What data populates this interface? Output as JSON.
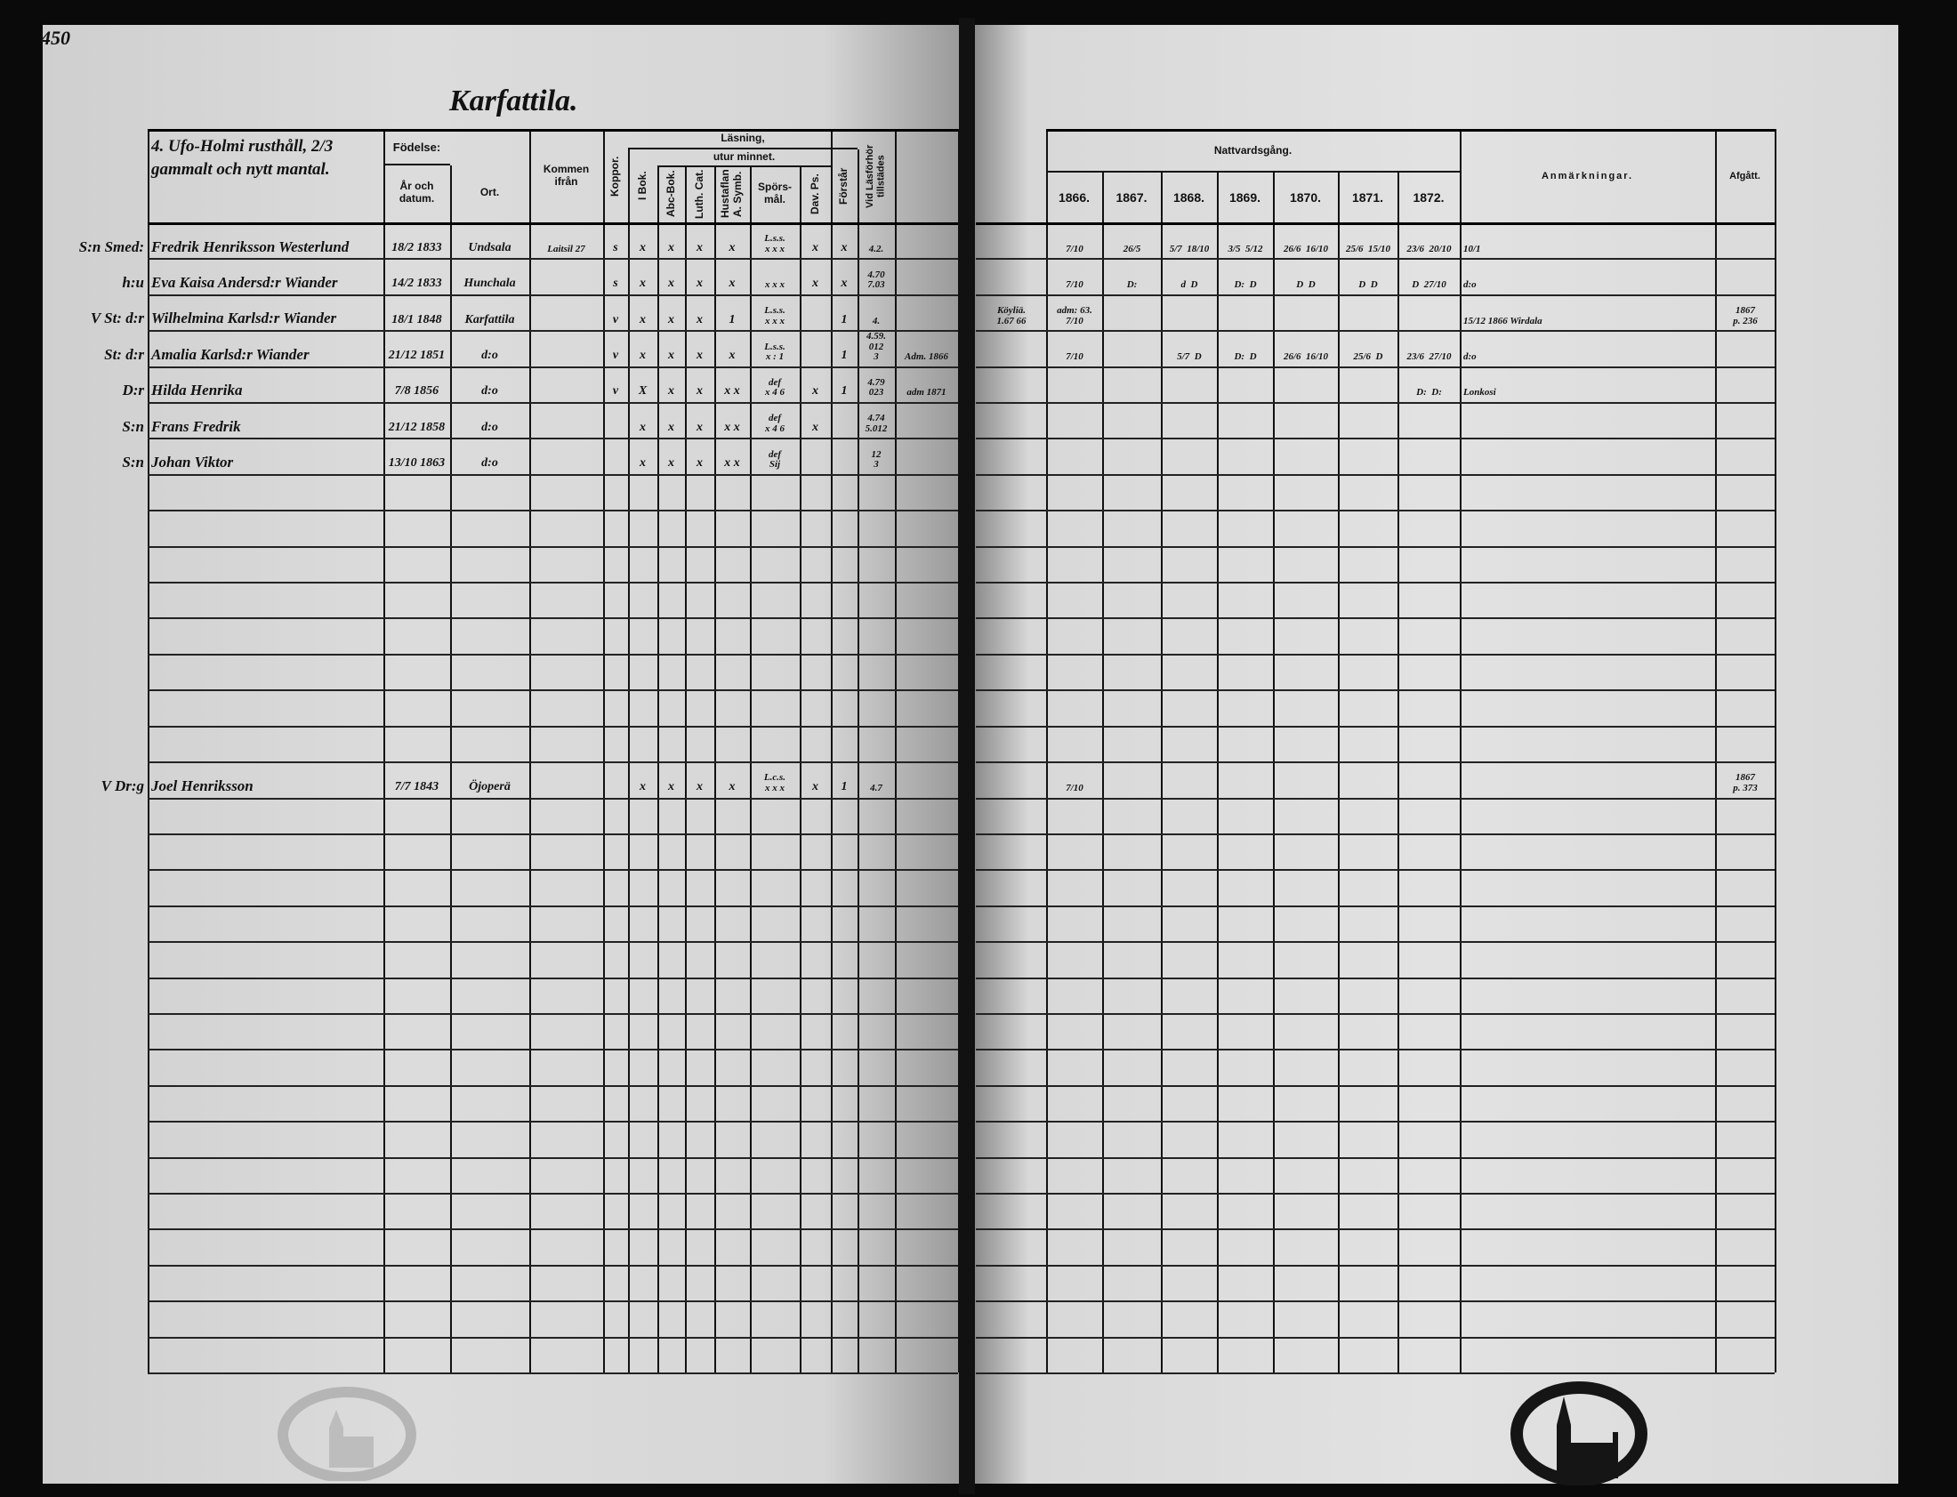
{
  "page_number": "450",
  "left": {
    "title": "Karfattila.",
    "household_heading": "4. Ufo-Holmi rusthåll, 2/3 gammalt och nytt mantal.",
    "headers": {
      "fodelse": "Födelse:",
      "ar_datum": "År och datum.",
      "ort": "Ort.",
      "kommen_ifran": "Kommen ifrån",
      "koppor": "Koppor.",
      "lasning": "Läsning,",
      "utur_minnet": "utur minnet.",
      "i_bok": "I Bok.",
      "abc_bok": "Abc-Bok.",
      "luth_cat": "Luth. Cat.",
      "hustaflan": "Hustaflan A. Symb.",
      "sporsmal": "Spörs-mål.",
      "dav_ps": "Dav. Ps.",
      "forstar": "Förstår",
      "lasforhor": "Vid Läsförhör tillstädes"
    },
    "rows": [
      {
        "prefix": "S:n Smed:",
        "name": "Fredrik Henriksson Westerlund",
        "date": "18/2 1833",
        "place": "Undsala",
        "from": "Laitsil 27",
        "koppor": "s",
        "i_bok": "x",
        "abc_bok": "x",
        "luth_cat": "x",
        "hustaflan": "x",
        "sporsmal": "L.s.s.\nx x x",
        "dav_ps": "x",
        "forstar": "x",
        "lasforhor": "4.2.",
        "extra": ""
      },
      {
        "prefix": "h:u",
        "name": "Eva Kaisa Andersd:r Wiander",
        "date": "14/2 1833",
        "place": "Hunchala",
        "from": "",
        "koppor": "s",
        "i_bok": "x",
        "abc_bok": "x",
        "luth_cat": "x",
        "hustaflan": "x",
        "sporsmal": "x x x",
        "dav_ps": "x",
        "forstar": "x",
        "lasforhor": "4.70\n7.03",
        "extra": ""
      },
      {
        "prefix": "V St: d:r",
        "name": "Wilhelmina Karlsd:r Wiander",
        "date": "18/1 1848",
        "place": "Karfattila",
        "from": "",
        "koppor": "v",
        "i_bok": "x",
        "abc_bok": "x",
        "luth_cat": "x",
        "hustaflan": "1",
        "sporsmal": "L.s.s.\nx x x",
        "dav_ps": "",
        "forstar": "1",
        "lasforhor": "4.",
        "extra": ""
      },
      {
        "prefix": "St: d:r",
        "name": "Amalia Karlsd:r Wiander",
        "date": "21/12 1851",
        "place": "d:o",
        "from": "",
        "koppor": "v",
        "i_bok": "x",
        "abc_bok": "x",
        "luth_cat": "x",
        "hustaflan": "x",
        "sporsmal": "L.s.s.\nx : 1",
        "dav_ps": "",
        "forstar": "1",
        "lasforhor": "4.59.\n012\n3",
        "extra": "Adm. 1866"
      },
      {
        "prefix": "D:r",
        "name": "Hilda Henrika",
        "date": "7/8 1856",
        "place": "d:o",
        "from": "",
        "koppor": "v",
        "i_bok": "X",
        "abc_bok": "x",
        "luth_cat": "x",
        "hustaflan": "x x",
        "sporsmal": "def\nx 4 6",
        "dav_ps": "x",
        "forstar": "1",
        "lasforhor": "4.79\n023",
        "extra": "adm 1871"
      },
      {
        "prefix": "S:n",
        "name": "Frans Fredrik",
        "date": "21/12 1858",
        "place": "d:o",
        "from": "",
        "koppor": "",
        "i_bok": "x",
        "abc_bok": "x",
        "luth_cat": "x",
        "hustaflan": "x x",
        "sporsmal": "def\nx 4 6",
        "dav_ps": "x",
        "forstar": "",
        "lasforhor": "4.74\n5.012",
        "extra": ""
      },
      {
        "prefix": "S:n",
        "name": "Johan Viktor",
        "date": "13/10 1863",
        "place": "d:o",
        "from": "",
        "koppor": "",
        "i_bok": "x",
        "abc_bok": "x",
        "luth_cat": "x",
        "hustaflan": "x x",
        "sporsmal": "def\nSij",
        "dav_ps": "",
        "forstar": "",
        "lasforhor": "12\n3",
        "extra": ""
      },
      {
        "prefix": "V Dr:g",
        "name": "Joel Henriksson",
        "date": "7/7 1843",
        "place": "Öjoperä",
        "from": "",
        "koppor": "",
        "i_bok": "x",
        "abc_bok": "x",
        "luth_cat": "x",
        "hustaflan": "x",
        "sporsmal": "L.c.s.\nx x x",
        "dav_ps": "x",
        "forstar": "1",
        "lasforhor": "4.7",
        "extra": ""
      }
    ]
  },
  "right": {
    "headers": {
      "nattvardsgang": "Nattvardsgång.",
      "years": [
        "1866.",
        "1867.",
        "1868.",
        "1869.",
        "1870.",
        "1871.",
        "1872."
      ],
      "anmarkningar": "Anmärkningar.",
      "afgatt": "Afgått."
    },
    "rows": [
      {
        "extra": "",
        "y1866": "7/10",
        "y1867": "26/5",
        "y1868": "5/7  18/10",
        "y1869": "3/5  5/12",
        "y1870": "26/6  16/10",
        "y1871": "25/6  15/10",
        "y1872": "23/6  20/10",
        "remarks": "10/1",
        "departed": ""
      },
      {
        "extra": "",
        "y1866": "7/10",
        "y1867": "D:",
        "y1868": "d  D",
        "y1869": "D:  D",
        "y1870": "D  D",
        "y1871": "D  D",
        "y1872": "D  27/10",
        "remarks": "d:o",
        "departed": ""
      },
      {
        "extra": "Köyliä.\n1.67 66",
        "y1866": "adm: 63.\n7/10",
        "y1867": "",
        "y1868": "",
        "y1869": "",
        "y1870": "",
        "y1871": "",
        "y1872": "",
        "remarks": "15/12 1866 Wirdala",
        "departed": "1867\np. 236"
      },
      {
        "extra": "",
        "y1866": "7/10",
        "y1867": "",
        "y1868": "5/7  D",
        "y1869": "D:  D",
        "y1870": "26/6  16/10",
        "y1871": "25/6  D",
        "y1872": "23/6  27/10",
        "remarks": "d:o",
        "departed": ""
      },
      {
        "extra": "",
        "y1866": "",
        "y1867": "",
        "y1868": "",
        "y1869": "",
        "y1870": "",
        "y1871": "",
        "y1872": "D:  D:",
        "remarks": "Lonkosi",
        "departed": ""
      },
      {
        "extra": "",
        "y1866": "",
        "y1867": "",
        "y1868": "",
        "y1869": "",
        "y1870": "",
        "y1871": "",
        "y1872": "",
        "remarks": "",
        "departed": ""
      },
      {
        "extra": "",
        "y1866": "",
        "y1867": "",
        "y1868": "",
        "y1869": "",
        "y1870": "",
        "y1871": "",
        "y1872": "",
        "remarks": "",
        "departed": ""
      },
      {
        "extra": "",
        "y1866": "7/10",
        "y1867": "",
        "y1868": "",
        "y1869": "",
        "y1870": "",
        "y1871": "",
        "y1872": "",
        "remarks": "",
        "departed": "1867\np. 373"
      }
    ]
  },
  "stamps": {
    "archive_stamp": "archive-seal-church"
  }
}
